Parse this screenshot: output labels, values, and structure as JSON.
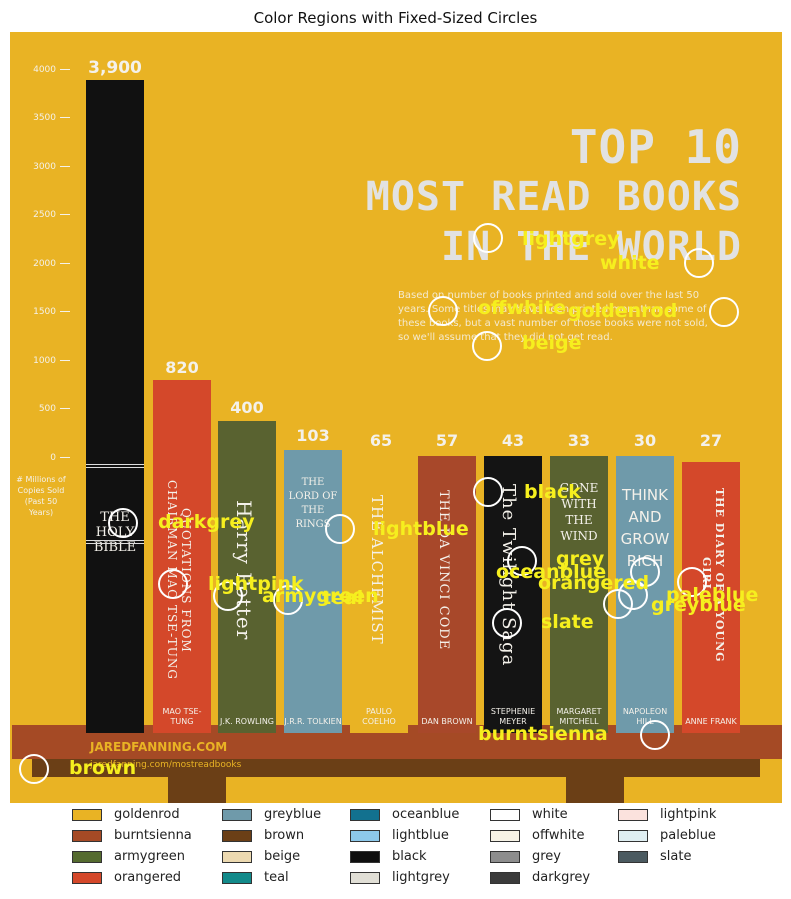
{
  "title": "Color Regions with Fixed-Sized Circles",
  "infographic": {
    "headline": [
      "TOP 10",
      "MOST READ BOOKS",
      "IN THE WORLD"
    ],
    "blurb": "Based on number of books printed and sold over the last 50 years. Some titles may have been printed more than some of these books, but a vast number of those books were not sold, so we'll assume that they did not get read.",
    "axis_ticks": [
      "4000",
      "3500",
      "3000",
      "2500",
      "2000",
      "1500",
      "1000",
      "500",
      "0"
    ],
    "axis_note": "# Millions of Copies Sold (Past 50 Years)",
    "credit": "JAREDFANNING.COM",
    "credit_url": "jaredfanning.com/mostreadbooks",
    "books": [
      {
        "value": "3,900",
        "spine": "THE HOLY BIBLE",
        "author": "",
        "color": "#111111"
      },
      {
        "value": "820",
        "spine": "QUOTATIONS FROM CHAIRMAN MAO TSE-TUNG",
        "author": "MAO TSE-TUNG",
        "color": "#d4482a"
      },
      {
        "value": "400",
        "spine": "Harry Potter",
        "author": "J.K. ROWLING",
        "color": "#596230"
      },
      {
        "value": "103",
        "spine": "THE LORD OF THE RINGS",
        "author": "J.R.R. TOLKIEN",
        "color": "#6f9aaa"
      },
      {
        "value": "65",
        "spine": "THE ALCHEMIST",
        "author": "PAULO COELHO",
        "color": "#e9b324"
      },
      {
        "value": "57",
        "spine": "THE DA VINCI CODE",
        "author": "DAN BROWN",
        "color": "#a8482a"
      },
      {
        "value": "43",
        "spine": "The Twilight Saga",
        "author": "STEPHENIE MEYER",
        "color": "#141414"
      },
      {
        "value": "33",
        "spine": "GONE WITH THE WIND",
        "author": "MARGARET MITCHELL",
        "color": "#596230"
      },
      {
        "value": "30",
        "spine": "THINK AND GROW RICH",
        "author": "NAPOLEON HILL",
        "color": "#6f9aaa"
      },
      {
        "value": "27",
        "spine": "THE DIARY OF A YOUNG GIRL",
        "author": "ANNE FRANK",
        "color": "#d4482a"
      }
    ]
  },
  "markers": [
    {
      "label": "lightgrey"
    },
    {
      "label": "white"
    },
    {
      "label": "offwhite"
    },
    {
      "label": "goldenrod"
    },
    {
      "label": "beige"
    },
    {
      "label": "black"
    },
    {
      "label": "darkgrey"
    },
    {
      "label": "lightblue"
    },
    {
      "label": "grey"
    },
    {
      "label": "oceanblue"
    },
    {
      "label": "orangered"
    },
    {
      "label": "lightpink"
    },
    {
      "label": "armygreen"
    },
    {
      "label": "teal"
    },
    {
      "label": "paleblue"
    },
    {
      "label": "greyblue"
    },
    {
      "label": "slate"
    },
    {
      "label": "burntsienna"
    },
    {
      "label": "brown"
    }
  ],
  "legend": [
    {
      "label": "goldenrod",
      "color": "#e9b324"
    },
    {
      "label": "burntsienna",
      "color": "#a54a25"
    },
    {
      "label": "armygreen",
      "color": "#556b2f"
    },
    {
      "label": "orangered",
      "color": "#d4482a"
    },
    {
      "label": "greyblue",
      "color": "#6f9aaa"
    },
    {
      "label": "brown",
      "color": "#6b3f16"
    },
    {
      "label": "beige",
      "color": "#ecd9b0"
    },
    {
      "label": "teal",
      "color": "#128a8a"
    },
    {
      "label": "oceanblue",
      "color": "#12718f"
    },
    {
      "label": "lightblue",
      "color": "#8dc8ea"
    },
    {
      "label": "black",
      "color": "#0f0f0f"
    },
    {
      "label": "lightgrey",
      "color": "#e1dfd6"
    },
    {
      "label": "white",
      "color": "#ffffff"
    },
    {
      "label": "offwhite",
      "color": "#f7f3e6"
    },
    {
      "label": "grey",
      "color": "#8d8d8d"
    },
    {
      "label": "darkgrey",
      "color": "#3b3b3b"
    },
    {
      "label": "lightpink",
      "color": "#fbe2dd"
    },
    {
      "label": "paleblue",
      "color": "#dfeef1"
    },
    {
      "label": "slate",
      "color": "#4b5a60"
    }
  ]
}
